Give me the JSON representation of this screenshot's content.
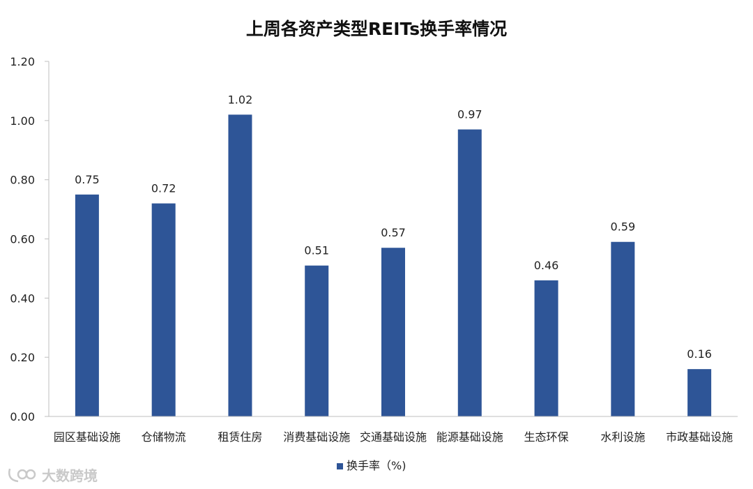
{
  "chart_data": {
    "type": "bar",
    "title": "上周各资产类型REITs换手率情况",
    "categories": [
      "园区基础设施",
      "仓储物流",
      "租赁住房",
      "消费基础设施",
      "交通基础设施",
      "能源基础设施",
      "生态环保",
      "水利设施",
      "市政基础设施"
    ],
    "series": [
      {
        "name": "换手率（%)",
        "values": [
          0.75,
          0.72,
          1.02,
          0.51,
          0.57,
          0.97,
          0.46,
          0.59,
          0.16
        ],
        "data_labels": [
          "0.75",
          "0.72",
          "1.02",
          "0.51",
          "0.57",
          "0.97",
          "0.46",
          "0.59",
          "0.16"
        ],
        "color": "#2E5597"
      }
    ],
    "xlabel": "",
    "ylabel": "",
    "ylim": [
      0,
      1.2
    ],
    "y_ticks": [
      "0.00",
      "0.20",
      "0.40",
      "0.60",
      "0.80",
      "1.00",
      "1.20"
    ],
    "legend_position": "bottom",
    "grid": false
  },
  "watermark": {
    "text": "大数跨境"
  },
  "colors": {
    "bar": "#2E5597",
    "axis": "#BFBFBF"
  }
}
